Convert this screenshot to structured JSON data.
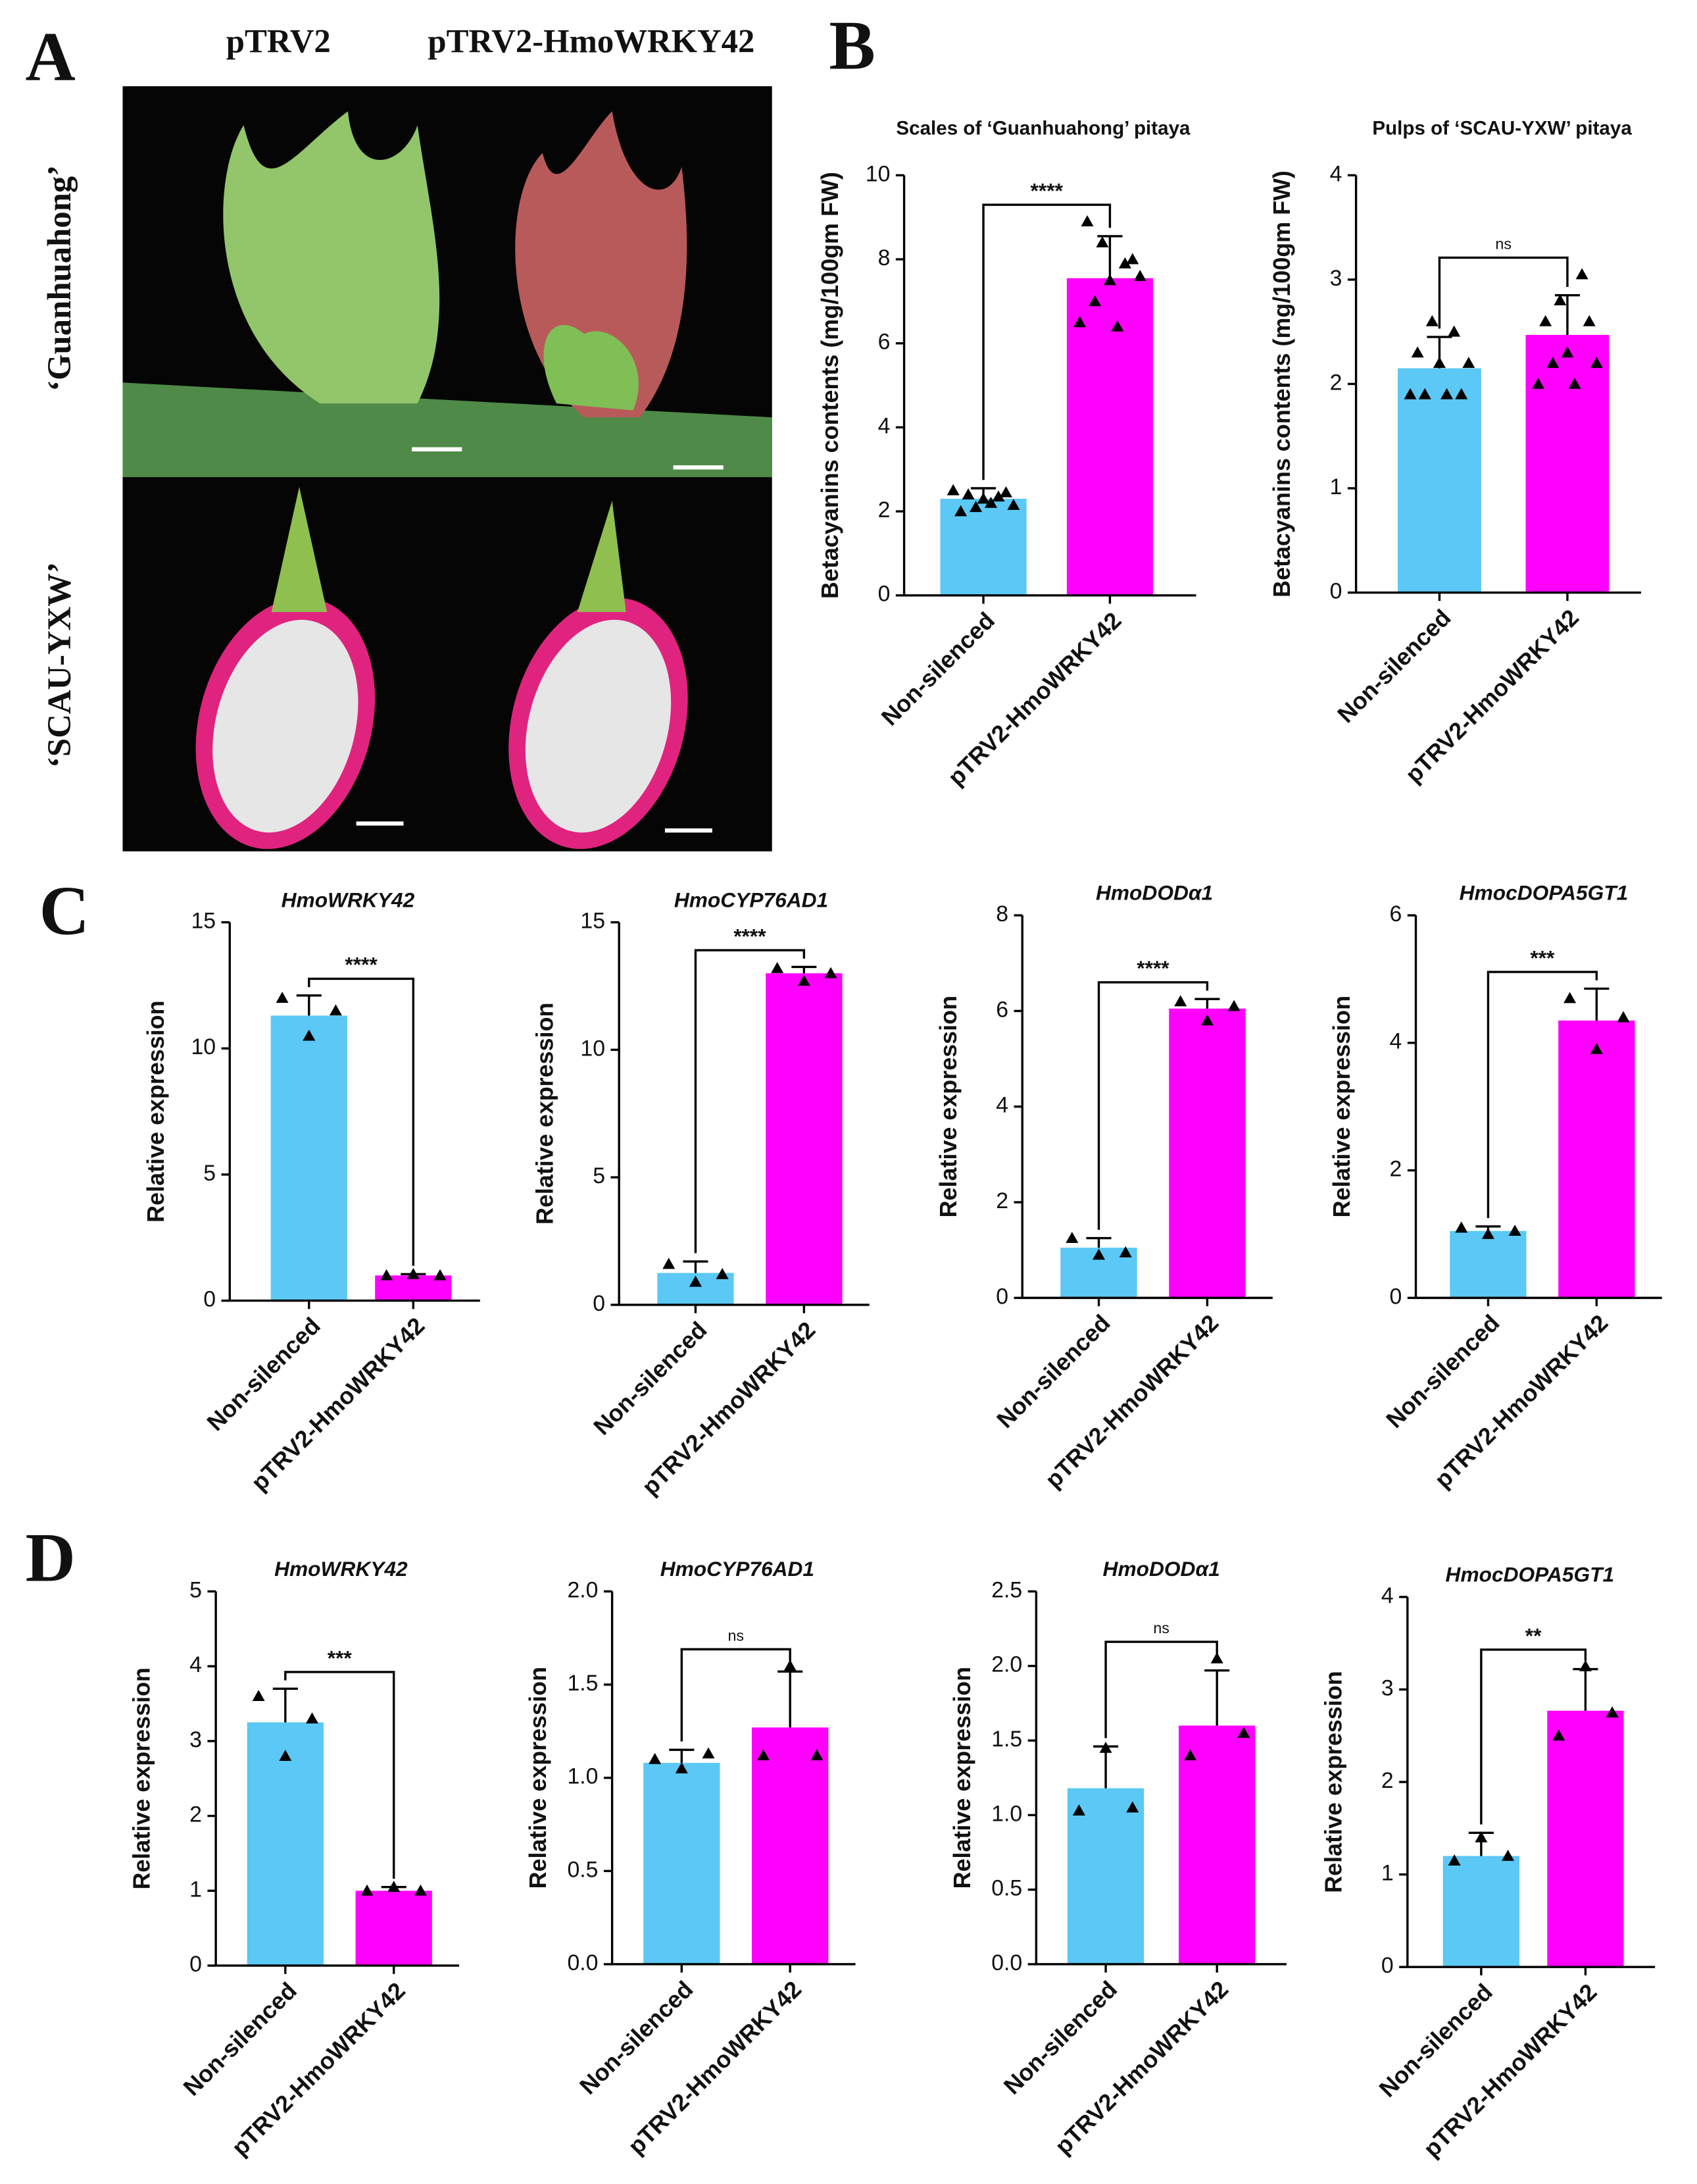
{
  "panel_labels": [
    "A",
    "B",
    "C",
    "D"
  ],
  "photo_columns": [
    "pTRV2",
    "pTRV2-HmoWRKY42"
  ],
  "photo_rows": [
    "‘Guanhuahong’",
    "‘SCAU-YXW’"
  ],
  "chart_data": [
    {
      "type": "bar",
      "title": "Scales of ‘Guanhuahong’ pitaya",
      "ylabel": "Betacyanins contents (mg/100gm FW)",
      "categories": [
        "Non-silenced",
        "pTRV2-HmoWRKY42"
      ],
      "colors": [
        "#5bc8f5",
        "#ff00ff"
      ],
      "values": [
        2.3,
        7.55
      ],
      "errors": [
        0.25,
        1.0
      ],
      "points": [
        [
          2.5,
          2.0,
          2.4,
          2.1,
          2.3,
          2.2,
          2.35,
          2.45,
          2.15
        ],
        [
          6.5,
          8.9,
          7.0,
          8.4,
          7.5,
          6.4,
          7.9,
          8.0,
          7.6
        ]
      ],
      "significance": "****",
      "ylim": [
        0,
        10
      ],
      "yticks": [
        0,
        2,
        4,
        6,
        8,
        10
      ]
    },
    {
      "type": "bar",
      "title": "Pulps of ‘SCAU-YXW’ pitaya",
      "ylabel": "Betacyanins contents (mg/100gm FW)",
      "categories": [
        "Non-silenced",
        "pTRV2-HmoWRKY42"
      ],
      "colors": [
        "#5bc8f5",
        "#ff00ff"
      ],
      "values": [
        2.15,
        2.47
      ],
      "errors": [
        0.3,
        0.38
      ],
      "points": [
        [
          1.9,
          2.3,
          1.9,
          2.6,
          2.2,
          1.9,
          2.5,
          1.9,
          2.2
        ],
        [
          2.0,
          2.6,
          2.2,
          2.8,
          2.3,
          2.0,
          3.05,
          2.6,
          2.2
        ]
      ],
      "significance": "ns",
      "ylim": [
        0,
        4
      ],
      "yticks": [
        0,
        1,
        2,
        3,
        4
      ]
    },
    {
      "type": "bar",
      "title": "HmoWRKY42",
      "ylabel": "Relative expression",
      "categories": [
        "Non-silenced",
        "pTRV2-HmoWRKY42"
      ],
      "colors": [
        "#5bc8f5",
        "#ff00ff"
      ],
      "values": [
        11.3,
        1.0
      ],
      "errors": [
        0.8,
        0.05
      ],
      "points": [
        [
          12.0,
          10.5,
          11.5
        ],
        [
          1.0,
          1.05,
          1.0
        ]
      ],
      "significance": "****",
      "ylim": [
        0,
        15
      ],
      "yticks": [
        0,
        5,
        10,
        15
      ]
    },
    {
      "type": "bar",
      "title": "HmoCYP76AD1",
      "ylabel": "Relative expression",
      "categories": [
        "Non-silenced",
        "pTRV2-HmoWRKY42"
      ],
      "colors": [
        "#5bc8f5",
        "#ff00ff"
      ],
      "values": [
        1.25,
        13.0
      ],
      "errors": [
        0.45,
        0.25
      ],
      "points": [
        [
          1.6,
          0.9,
          1.2
        ],
        [
          13.2,
          12.7,
          13.0
        ]
      ],
      "significance": "****",
      "ylim": [
        0,
        15
      ],
      "yticks": [
        0,
        5,
        10,
        15
      ]
    },
    {
      "type": "bar",
      "title": "HmoDODα1",
      "ylabel": "Relative expression",
      "categories": [
        "Non-silenced",
        "pTRV2-HmoWRKY42"
      ],
      "colors": [
        "#5bc8f5",
        "#ff00ff"
      ],
      "values": [
        1.05,
        6.05
      ],
      "errors": [
        0.2,
        0.2
      ],
      "points": [
        [
          1.25,
          0.9,
          0.95
        ],
        [
          6.2,
          5.8,
          6.1
        ]
      ],
      "significance": "****",
      "ylim": [
        0,
        8
      ],
      "yticks": [
        0,
        2,
        4,
        6,
        8
      ]
    },
    {
      "type": "bar",
      "title": "HmocDOPA5GT1",
      "ylabel": "Relative expression",
      "categories": [
        "Non-silenced",
        "pTRV2-HmoWRKY42"
      ],
      "colors": [
        "#5bc8f5",
        "#ff00ff"
      ],
      "values": [
        1.05,
        4.35
      ],
      "errors": [
        0.07,
        0.5
      ],
      "points": [
        [
          1.1,
          1.0,
          1.05
        ],
        [
          4.7,
          3.9,
          4.4
        ]
      ],
      "significance": "***",
      "ylim": [
        0,
        6
      ],
      "yticks": [
        0,
        2,
        4,
        6
      ]
    },
    {
      "type": "bar",
      "title": "HmoWRKY42",
      "ylabel": "Relative expression",
      "categories": [
        "Non-silenced",
        "pTRV2-HmoWRKY42"
      ],
      "colors": [
        "#5bc8f5",
        "#ff00ff"
      ],
      "values": [
        3.25,
        1.0
      ],
      "errors": [
        0.45,
        0.05
      ],
      "points": [
        [
          3.6,
          2.8,
          3.3
        ],
        [
          1.0,
          1.05,
          1.0
        ]
      ],
      "significance": "***",
      "ylim": [
        0,
        5
      ],
      "yticks": [
        0,
        1,
        2,
        3,
        4,
        5
      ]
    },
    {
      "type": "bar",
      "title": "HmoCYP76AD1",
      "ylabel": "Relative expression",
      "categories": [
        "Non-silenced",
        "pTRV2-HmoWRKY42"
      ],
      "colors": [
        "#5bc8f5",
        "#ff00ff"
      ],
      "values": [
        1.08,
        1.27
      ],
      "errors": [
        0.07,
        0.3
      ],
      "points": [
        [
          1.1,
          1.05,
          1.13
        ],
        [
          1.12,
          1.6,
          1.12
        ]
      ],
      "significance": "ns",
      "ylim": [
        0,
        2
      ],
      "yticks": [
        {
          "value": 0,
          "label": "0.0"
        },
        0.5,
        {
          "value": 1,
          "label": "1.0"
        },
        1.5,
        {
          "value": 2,
          "label": "2.0"
        }
      ]
    },
    {
      "type": "bar",
      "title": "HmoDODα1",
      "ylabel": "Relative expression",
      "categories": [
        "Non-silenced",
        "pTRV2-HmoWRKY42"
      ],
      "colors": [
        "#5bc8f5",
        "#ff00ff"
      ],
      "values": [
        1.18,
        1.6
      ],
      "errors": [
        0.28,
        0.37
      ],
      "points": [
        [
          1.03,
          1.45,
          1.05
        ],
        [
          1.4,
          2.05,
          1.55
        ]
      ],
      "significance": "ns",
      "ylim": [
        0,
        2.5
      ],
      "yticks": [
        {
          "value": 0,
          "label": "0.0"
        },
        0.5,
        {
          "value": 1,
          "label": "1.0"
        },
        1.5,
        {
          "value": 2,
          "label": "2.0"
        },
        2.5
      ]
    },
    {
      "type": "bar",
      "title": "HmocDOPA5GT1",
      "ylabel": "Relative expression",
      "categories": [
        "Non-silenced",
        "pTRV2-HmoWRKY42"
      ],
      "colors": [
        "#5bc8f5",
        "#ff00ff"
      ],
      "values": [
        1.2,
        2.77
      ],
      "errors": [
        0.25,
        0.45
      ],
      "points": [
        [
          1.15,
          1.4,
          1.2
        ],
        [
          2.5,
          3.25,
          2.75
        ]
      ],
      "significance": "**",
      "ylim": [
        0,
        4
      ],
      "yticks": [
        0,
        1,
        2,
        3,
        4
      ]
    }
  ]
}
